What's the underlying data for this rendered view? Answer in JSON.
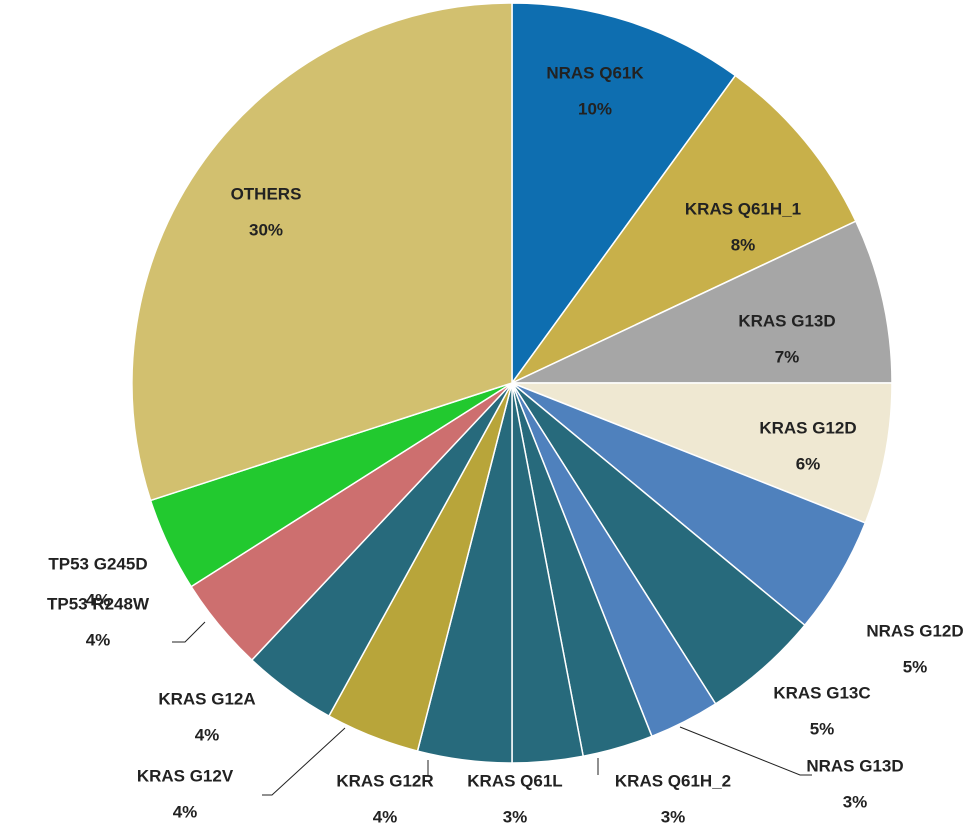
{
  "chart_data": {
    "type": "pie",
    "categories": [
      "NRAS Q61K",
      "KRAS Q61H_1",
      "KRAS G13D",
      "KRAS G12D",
      "NRAS G12D",
      "KRAS G13C",
      "NRAS G13D",
      "KRAS Q61H_2",
      "KRAS Q61L",
      "KRAS G12R",
      "KRAS G12V",
      "KRAS G12A",
      "TP53 R248W",
      "TP53 G245D",
      "OTHERS"
    ],
    "values": [
      10,
      8,
      7,
      6,
      5,
      5,
      3,
      3,
      3,
      4,
      4,
      4,
      4,
      4,
      30
    ],
    "value_labels": [
      "10%",
      "8%",
      "7%",
      "6%",
      "5%",
      "5%",
      "3%",
      "3%",
      "3%",
      "4%",
      "4%",
      "4%",
      "4%",
      "4%",
      "30%"
    ],
    "colors": [
      "#0e6eb0",
      "#c8b04a",
      "#a6a6a6",
      "#efe8d2",
      "#4f81bd",
      "#276a7c",
      "#4f81bd",
      "#276a7c",
      "#276a7c",
      "#276a7c",
      "#b8a53a",
      "#276a7c",
      "#cd6f6f",
      "#22c92f",
      "#d2c06f"
    ]
  }
}
